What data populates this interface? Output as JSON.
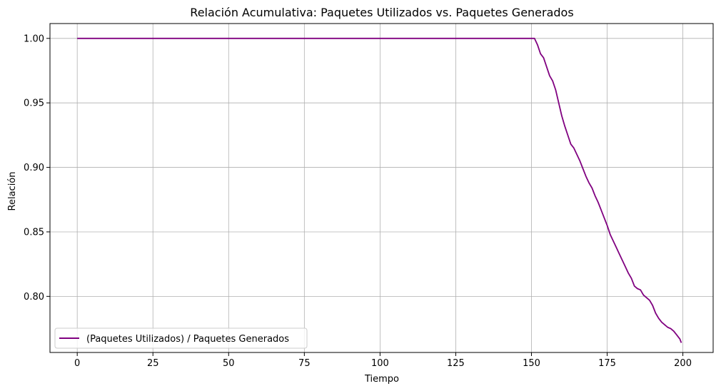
{
  "chart_data": {
    "type": "line",
    "title": "Relación Acumulativa: Paquetes Utilizados vs. Paquetes Generados",
    "xlabel": "Tiempo",
    "ylabel": "Relación",
    "xlim": [
      -9,
      210
    ],
    "ylim": [
      0.7565,
      1.0115
    ],
    "x_ticks": [
      0,
      25,
      50,
      75,
      100,
      125,
      150,
      175,
      200
    ],
    "y_ticks": [
      0.8,
      0.85,
      0.9,
      0.95,
      1.0
    ],
    "x_tick_labels": [
      "0",
      "25",
      "50",
      "75",
      "100",
      "125",
      "150",
      "175",
      "200"
    ],
    "y_tick_labels": [
      "0.80",
      "0.85",
      "0.90",
      "0.95",
      "1.00"
    ],
    "grid": true,
    "legend_position": "lower-left",
    "series": [
      {
        "name": "(Paquetes Utilizados) / Paquetes Generados",
        "color": "#800080",
        "x": [
          0,
          151,
          152,
          153,
          154,
          155,
          156,
          157,
          158,
          159,
          160,
          161,
          162,
          163,
          164,
          165,
          166,
          167,
          168,
          169,
          170,
          171,
          172,
          173,
          174,
          175,
          176,
          177,
          178,
          179,
          180,
          181,
          182,
          183,
          184,
          185,
          186,
          187,
          188,
          189,
          190,
          191,
          192,
          193,
          194,
          195,
          196,
          197,
          198,
          199,
          199.5
        ],
        "y": [
          1.0,
          1.0,
          0.995,
          0.988,
          0.985,
          0.978,
          0.971,
          0.967,
          0.96,
          0.95,
          0.94,
          0.932,
          0.925,
          0.918,
          0.915,
          0.91,
          0.905,
          0.899,
          0.893,
          0.888,
          0.884,
          0.878,
          0.873,
          0.867,
          0.861,
          0.855,
          0.848,
          0.843,
          0.838,
          0.833,
          0.828,
          0.823,
          0.818,
          0.814,
          0.808,
          0.806,
          0.805,
          0.801,
          0.799,
          0.797,
          0.793,
          0.787,
          0.783,
          0.78,
          0.778,
          0.776,
          0.775,
          0.773,
          0.77,
          0.767,
          0.764
        ]
      }
    ]
  }
}
